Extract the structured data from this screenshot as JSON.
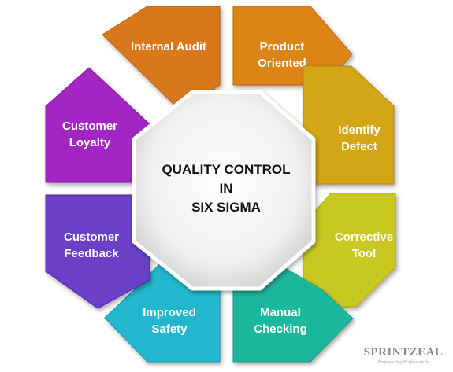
{
  "center": {
    "lines": [
      "QUALITY CONTROL",
      "IN",
      "SIX SIGMA"
    ]
  },
  "segments": [
    {
      "id": "internal-audit",
      "lines": [
        "Internal Audit"
      ],
      "color": "#D9771E",
      "color_dark": "#B85F10"
    },
    {
      "id": "product-oriented",
      "lines": [
        "Product",
        "Oriented"
      ],
      "color": "#DC8418",
      "color_dark": "#BF6D0C"
    },
    {
      "id": "identify-defect",
      "lines": [
        "Identify",
        "Defect"
      ],
      "color": "#D4A617",
      "color_dark": "#B58B0B"
    },
    {
      "id": "corrective-tool",
      "lines": [
        "Corrective",
        "Tool"
      ],
      "color": "#C9C822",
      "color_dark": "#A9A812"
    },
    {
      "id": "manual-checking",
      "lines": [
        "Manual",
        "Checking"
      ],
      "color": "#1FB89D",
      "color_dark": "#139B82"
    },
    {
      "id": "improved-safety",
      "lines": [
        "Improved",
        "Safety"
      ],
      "color": "#24B7CF",
      "color_dark": "#1899AF"
    },
    {
      "id": "customer-feedback",
      "lines": [
        "Customer",
        "Feedback"
      ],
      "color": "#6A3FC8",
      "color_dark": "#5228A8"
    },
    {
      "id": "customer-loyalty",
      "lines": [
        "Customer",
        "Loyalty"
      ],
      "color": "#A325C2",
      "color_dark": "#8515A2"
    }
  ],
  "watermark": {
    "name": "SPRINTZEAL",
    "tagline": "Empowering Professionals"
  }
}
